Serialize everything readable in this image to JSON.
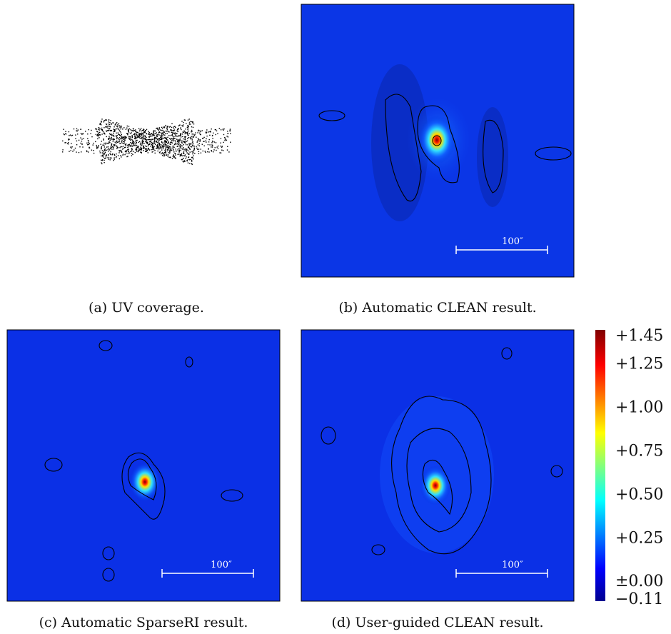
{
  "panels": [
    {
      "caption": "(a) UV coverage."
    },
    {
      "caption": "(b) Automatic CLEAN result.",
      "scale_bar": "100″"
    },
    {
      "caption": "(c) Automatic SparseRI result.",
      "scale_bar": "100″"
    },
    {
      "caption": "(d) User-guided CLEAN result.",
      "scale_bar": "100″"
    }
  ],
  "colorbar": {
    "ticks": [
      {
        "value": 1.45,
        "label": "+1.45"
      },
      {
        "value": 1.25,
        "label": "+1.25"
      },
      {
        "value": 1.0,
        "label": "+1.00"
      },
      {
        "value": 0.75,
        "label": "+0.75"
      },
      {
        "value": 0.5,
        "label": "+0.50"
      },
      {
        "value": 0.25,
        "label": "+0.25"
      },
      {
        "value": 0,
        "label": "±0.00"
      },
      {
        "value": -0.11,
        "label": "−0.11"
      }
    ]
  }
}
